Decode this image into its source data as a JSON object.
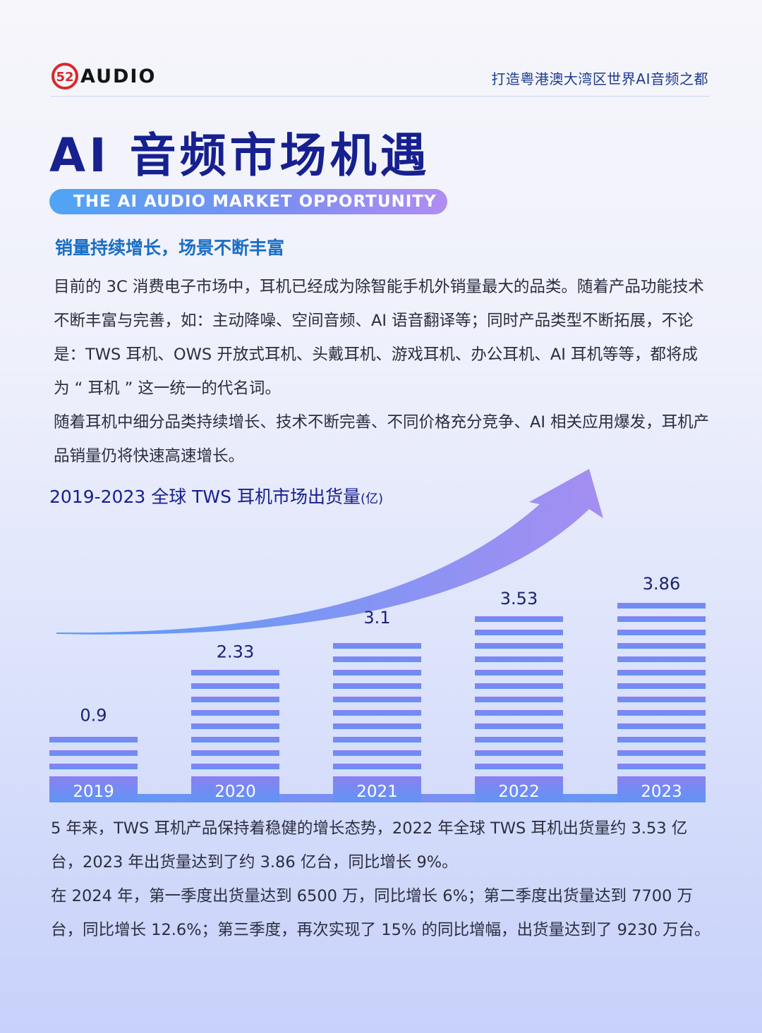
{
  "header": {
    "logo_text": "AUDIO",
    "logo_mark_text": "52",
    "slogan": "打造粤港澳大湾区世界AI音频之都"
  },
  "title": {
    "main": "AI 音频市场机遇",
    "english": "THE AI AUDIO MARKET OPPORTUNITY"
  },
  "section": {
    "heading": "销量持续增长，场景不断丰富",
    "paragraph_1": "目前的 3C 消费电子市场中，耳机已经成为除智能手机外销量最大的品类。随着产品功能技术不断丰富与完善，如：主动降噪、空间音频、AI 语音翻译等；同时产品类型不断拓展，不论是：TWS 耳机、OWS 开放式耳机、头戴耳机、游戏耳机、办公耳机、AI 耳机等等，都将成为 “ 耳机 ” 这一统一的代名词。",
    "paragraph_2": "随着耳机中细分品类持续增长、技术不断完善、不同价格充分竞争、AI 相关应用爆发，耳机产品销量仍将快速高速增长。"
  },
  "chart_title": "2019-2023 全球 TWS 耳机市场出货量",
  "chart_unit": "(亿)",
  "chart_data": {
    "type": "bar",
    "categories": [
      "2019",
      "2020",
      "2021",
      "2022",
      "2023"
    ],
    "values": [
      0.9,
      2.33,
      3.1,
      3.53,
      3.86
    ],
    "value_labels": [
      "0.9",
      "2.33",
      "3.1",
      "3.53",
      "3.86"
    ],
    "ylim": [
      0,
      3.86
    ],
    "grid": false,
    "legend": "none",
    "colors": {
      "bar_start": "#8a80f0",
      "bar_end": "#5f95f5",
      "label": "#1c2270",
      "arrow_start": "#5a9cf6",
      "arrow_end": "#a58ef2"
    }
  },
  "summary": {
    "paragraph_1": "5 年来，TWS 耳机产品保持着稳健的增长态势，2022 年全球 TWS 耳机出货量约 3.53 亿台，2023 年出货量达到了约 3.86 亿台，同比增长 9%。",
    "paragraph_2": "在 2024 年，第一季度出货量达到 6500 万，同比增长 6%；第二季度出货量达到 7700 万台，同比增长 12.6%；第三季度，再次实现了 15% 的同比增幅，出货量达到了 9230 万台。"
  },
  "colors": {
    "title": "#17208f",
    "heading": "#1a6fc4",
    "body_text": "#2b2d40"
  }
}
